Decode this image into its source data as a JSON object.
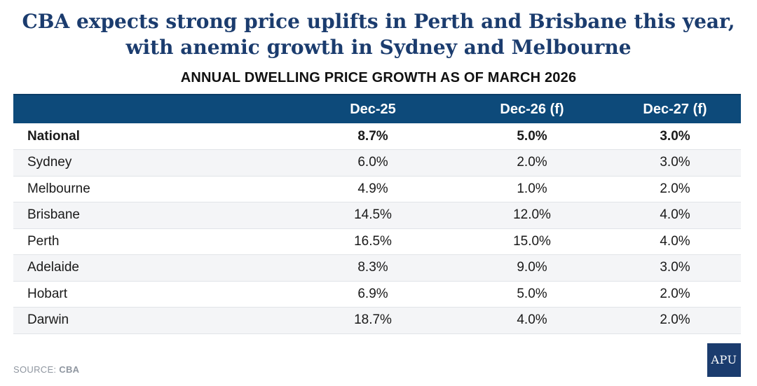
{
  "header": {
    "title_line1": "CBA expects strong price uplifts in Perth and Brisbane this year,",
    "title_line2": "with anemic growth in Sydney and Melbourne",
    "subtitle": "ANNUAL DWELLING PRICE GROWTH AS OF MARCH 2026"
  },
  "chart_data": {
    "type": "table",
    "title": "CBA expects strong price uplifts in Perth and Brisbane this year, with anemic growth in Sydney and Melbourne",
    "subtitle": "ANNUAL DWELLING PRICE GROWTH AS OF MARCH 2026",
    "columns": [
      "",
      "Dec-25",
      "Dec-26 (f)",
      "Dec-27 (f)"
    ],
    "rows": [
      {
        "region": "National",
        "values": [
          "8.7%",
          "5.0%",
          "3.0%"
        ],
        "bold": true
      },
      {
        "region": "Sydney",
        "values": [
          "6.0%",
          "2.0%",
          "3.0%"
        ],
        "bold": false
      },
      {
        "region": "Melbourne",
        "values": [
          "4.9%",
          "1.0%",
          "2.0%"
        ],
        "bold": false
      },
      {
        "region": "Brisbane",
        "values": [
          "14.5%",
          "12.0%",
          "4.0%"
        ],
        "bold": false
      },
      {
        "region": "Perth",
        "values": [
          "16.5%",
          "15.0%",
          "4.0%"
        ],
        "bold": false
      },
      {
        "region": "Adelaide",
        "values": [
          "8.3%",
          "9.0%",
          "3.0%"
        ],
        "bold": false
      },
      {
        "region": "Hobart",
        "values": [
          "6.9%",
          "5.0%",
          "2.0%"
        ],
        "bold": false
      },
      {
        "region": "Darwin",
        "values": [
          "18.7%",
          "4.0%",
          "2.0%"
        ],
        "bold": false
      }
    ]
  },
  "footer": {
    "source_label": "SOURCE:",
    "source_name": "CBA",
    "logo_text": "APU"
  },
  "colors": {
    "title": "#1b3c6e",
    "header_bg": "#0d4a7a",
    "logo_bg": "#1b3c6e",
    "stripe": "#f4f5f7"
  }
}
